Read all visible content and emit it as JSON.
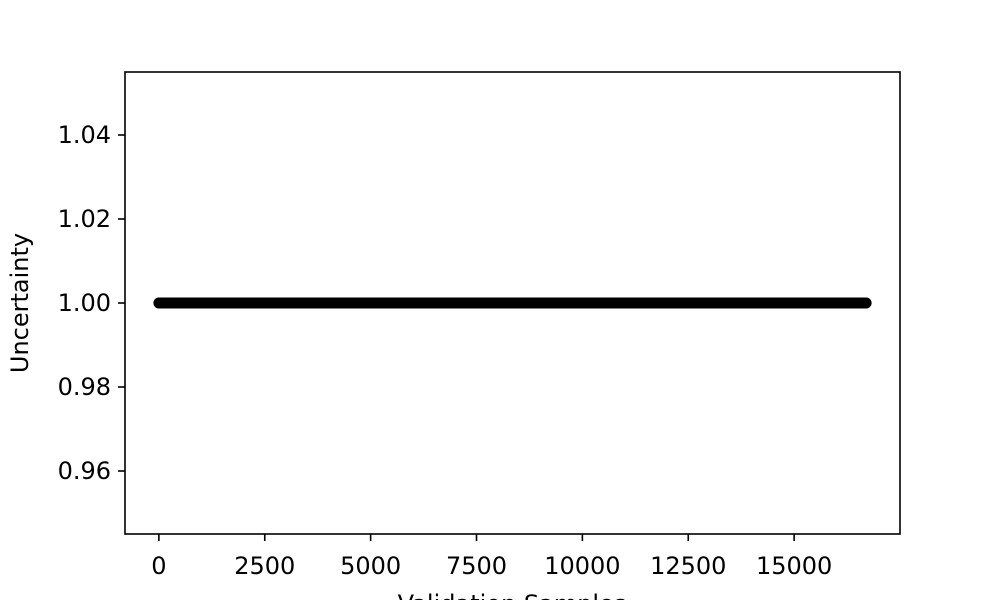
{
  "chart_data": {
    "type": "scatter",
    "title": "",
    "xlabel": "Validation Samples",
    "ylabel": "Uncertainty",
    "xlim": [
      -800,
      17500
    ],
    "ylim": [
      0.945,
      1.055
    ],
    "xticks": [
      0,
      2500,
      5000,
      7500,
      10000,
      12500,
      15000
    ],
    "xtick_labels": [
      "0",
      "2500",
      "5000",
      "7500",
      "10000",
      "12500",
      "15000"
    ],
    "yticks": [
      0.96,
      0.98,
      1.0,
      1.02,
      1.04
    ],
    "ytick_labels": [
      "0.96",
      "0.98",
      "1.00",
      "1.02",
      "1.04"
    ],
    "grid": false,
    "legend": null,
    "series": [
      {
        "x_start": 0,
        "x_end": 16700,
        "y": 1.0,
        "color": "#000000"
      }
    ]
  }
}
